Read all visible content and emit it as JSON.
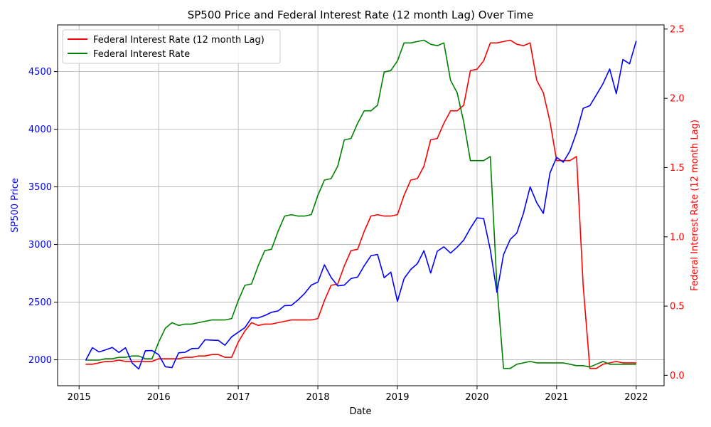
{
  "colors": {
    "sp500": "#0000ff",
    "rate_lag": "#ff0000",
    "rate": "#008000",
    "grid": "#b0b0b0",
    "axis": "#000000"
  },
  "chart_data": {
    "type": "line",
    "title": "SP500 Price and Federal Interest Rate (12 month Lag) Over Time",
    "xlabel": "Date",
    "ylabel_left": "SP500 Price",
    "ylabel_right": "Federal Interest Rate (12 month Lag)",
    "xlim": [
      2014.73,
      2022.35
    ],
    "ylim_left": [
      1775,
      4905
    ],
    "ylim_right": [
      -0.075,
      2.53
    ],
    "x_ticks": [
      2015,
      2016,
      2017,
      2018,
      2019,
      2020,
      2021,
      2022
    ],
    "x_tick_labels": [
      "2015",
      "2016",
      "2017",
      "2018",
      "2019",
      "2020",
      "2021",
      "2022"
    ],
    "y_left_ticks": [
      2000,
      2500,
      3000,
      3500,
      4000,
      4500
    ],
    "y_left_tick_labels": [
      "2000",
      "2500",
      "3000",
      "3500",
      "4000",
      "4500"
    ],
    "y_right_ticks": [
      0.0,
      0.5,
      1.0,
      1.5,
      2.0,
      2.5
    ],
    "y_right_tick_labels": [
      "0.0",
      "0.5",
      "1.0",
      "1.5",
      "2.0",
      "2.5"
    ],
    "grid": true,
    "legend_position": "top-left",
    "series": [
      {
        "name": "Federal Interest Rate (12 month Lag)",
        "axis": "right",
        "color_key": "rate_lag",
        "x": [
          2015.083,
          2015.167,
          2015.25,
          2015.333,
          2015.417,
          2015.5,
          2015.583,
          2015.667,
          2015.75,
          2015.833,
          2015.917,
          2016.0,
          2016.083,
          2016.167,
          2016.25,
          2016.333,
          2016.417,
          2016.5,
          2016.583,
          2016.667,
          2016.75,
          2016.833,
          2016.917,
          2017.0,
          2017.083,
          2017.167,
          2017.25,
          2017.333,
          2017.417,
          2017.5,
          2017.583,
          2017.667,
          2017.75,
          2017.833,
          2017.917,
          2018.0,
          2018.083,
          2018.167,
          2018.25,
          2018.333,
          2018.417,
          2018.5,
          2018.583,
          2018.667,
          2018.75,
          2018.833,
          2018.917,
          2019.0,
          2019.083,
          2019.167,
          2019.25,
          2019.333,
          2019.417,
          2019.5,
          2019.583,
          2019.667,
          2019.75,
          2019.833,
          2019.917,
          2020.0,
          2020.083,
          2020.167,
          2020.25,
          2020.333,
          2020.417,
          2020.5,
          2020.583,
          2020.667,
          2020.75,
          2020.833,
          2020.917,
          2021.0,
          2021.083,
          2021.167,
          2021.25,
          2021.333,
          2021.417,
          2021.5,
          2021.583,
          2021.667,
          2021.75,
          2021.833,
          2021.917,
          2022.0
        ],
        "values": [
          0.08,
          0.08,
          0.09,
          0.1,
          0.1,
          0.11,
          0.1,
          0.1,
          0.1,
          0.1,
          0.1,
          0.12,
          0.12,
          0.12,
          0.12,
          0.13,
          0.13,
          0.14,
          0.14,
          0.15,
          0.15,
          0.13,
          0.13,
          0.24,
          0.32,
          0.38,
          0.36,
          0.37,
          0.37,
          0.38,
          0.39,
          0.4,
          0.4,
          0.4,
          0.4,
          0.41,
          0.54,
          0.65,
          0.66,
          0.79,
          0.9,
          0.91,
          1.04,
          1.15,
          1.16,
          1.15,
          1.15,
          1.16,
          1.3,
          1.41,
          1.42,
          1.51,
          1.7,
          1.71,
          1.82,
          1.91,
          1.91,
          1.95,
          2.2,
          2.21,
          2.27,
          2.4,
          2.4,
          2.41,
          2.42,
          2.39,
          2.38,
          2.4,
          2.13,
          2.04,
          1.83,
          1.55,
          1.55,
          1.55,
          1.58,
          0.65,
          0.05,
          0.05,
          0.08,
          0.09,
          0.1,
          0.09,
          0.09,
          0.09
        ]
      },
      {
        "name": "Federal Interest Rate",
        "axis": "right",
        "color_key": "rate",
        "x": [
          2015.083,
          2015.167,
          2015.25,
          2015.333,
          2015.417,
          2015.5,
          2015.583,
          2015.667,
          2015.75,
          2015.833,
          2015.917,
          2016.0,
          2016.083,
          2016.167,
          2016.25,
          2016.333,
          2016.417,
          2016.5,
          2016.583,
          2016.667,
          2016.75,
          2016.833,
          2016.917,
          2017.0,
          2017.083,
          2017.167,
          2017.25,
          2017.333,
          2017.417,
          2017.5,
          2017.583,
          2017.667,
          2017.75,
          2017.833,
          2017.917,
          2018.0,
          2018.083,
          2018.167,
          2018.25,
          2018.333,
          2018.417,
          2018.5,
          2018.583,
          2018.667,
          2018.75,
          2018.833,
          2018.917,
          2019.0,
          2019.083,
          2019.167,
          2019.25,
          2019.333,
          2019.417,
          2019.5,
          2019.583,
          2019.667,
          2019.75,
          2019.833,
          2019.917,
          2020.0,
          2020.083,
          2020.167,
          2020.25,
          2020.333,
          2020.417,
          2020.5,
          2020.583,
          2020.667,
          2020.75,
          2020.833,
          2020.917,
          2021.0,
          2021.083,
          2021.167,
          2021.25,
          2021.333,
          2021.417,
          2021.5,
          2021.583,
          2021.667,
          2021.75,
          2021.833,
          2021.917,
          2022.0
        ],
        "values": [
          0.11,
          0.11,
          0.11,
          0.12,
          0.12,
          0.13,
          0.13,
          0.14,
          0.14,
          0.12,
          0.12,
          0.24,
          0.34,
          0.38,
          0.36,
          0.37,
          0.37,
          0.38,
          0.39,
          0.4,
          0.4,
          0.4,
          0.41,
          0.54,
          0.65,
          0.66,
          0.79,
          0.9,
          0.91,
          1.04,
          1.15,
          1.16,
          1.15,
          1.15,
          1.16,
          1.3,
          1.41,
          1.42,
          1.51,
          1.7,
          1.71,
          1.82,
          1.91,
          1.91,
          1.95,
          2.19,
          2.2,
          2.27,
          2.4,
          2.4,
          2.41,
          2.42,
          2.39,
          2.38,
          2.4,
          2.13,
          2.04,
          1.83,
          1.55,
          1.55,
          1.55,
          1.58,
          0.65,
          0.05,
          0.05,
          0.08,
          0.09,
          0.1,
          0.09,
          0.09,
          0.09,
          0.09,
          0.09,
          0.08,
          0.07,
          0.07,
          0.06,
          0.08,
          0.1,
          0.08,
          0.08,
          0.08,
          0.08,
          0.08
        ]
      },
      {
        "name": "SP500 Price",
        "axis": "left",
        "color_key": "sp500",
        "x": [
          2015.083,
          2015.167,
          2015.25,
          2015.333,
          2015.417,
          2015.5,
          2015.583,
          2015.667,
          2015.75,
          2015.833,
          2015.917,
          2016.0,
          2016.083,
          2016.167,
          2016.25,
          2016.333,
          2016.417,
          2016.5,
          2016.583,
          2016.667,
          2016.75,
          2016.833,
          2016.917,
          2017.0,
          2017.083,
          2017.167,
          2017.25,
          2017.333,
          2017.417,
          2017.5,
          2017.583,
          2017.667,
          2017.75,
          2017.833,
          2017.917,
          2018.0,
          2018.083,
          2018.167,
          2018.25,
          2018.333,
          2018.417,
          2018.5,
          2018.583,
          2018.667,
          2018.75,
          2018.833,
          2018.917,
          2019.0,
          2019.083,
          2019.167,
          2019.25,
          2019.333,
          2019.417,
          2019.5,
          2019.583,
          2019.667,
          2019.75,
          2019.833,
          2019.917,
          2020.0,
          2020.083,
          2020.167,
          2020.25,
          2020.333,
          2020.417,
          2020.5,
          2020.583,
          2020.667,
          2020.75,
          2020.833,
          2020.917,
          2021.0,
          2021.083,
          2021.167,
          2021.25,
          2021.333,
          2021.417,
          2021.5,
          2021.583,
          2021.667,
          2021.75,
          2021.833,
          2021.917,
          2022.0
        ],
        "values": [
          1995,
          2105,
          2068,
          2086,
          2107,
          2063,
          2104,
          1972,
          1920,
          2079,
          2080,
          2044,
          1940,
          1932,
          2060,
          2065,
          2097,
          2099,
          2174,
          2171,
          2168,
          2126,
          2199,
          2239,
          2279,
          2364,
          2363,
          2384,
          2412,
          2424,
          2470,
          2472,
          2519,
          2575,
          2648,
          2674,
          2824,
          2714,
          2641,
          2648,
          2705,
          2718,
          2816,
          2902,
          2914,
          2712,
          2760,
          2507,
          2704,
          2784,
          2834,
          2946,
          2752,
          2942,
          2980,
          2926,
          2977,
          3038,
          3141,
          3231,
          3226,
          2954,
          2585,
          2912,
          3044,
          3100,
          3271,
          3500,
          3363,
          3270,
          3622,
          3756,
          3714,
          3811,
          3973,
          4181,
          4204,
          4298,
          4395,
          4523,
          4308,
          4605,
          4567,
          4766
        ]
      }
    ]
  }
}
